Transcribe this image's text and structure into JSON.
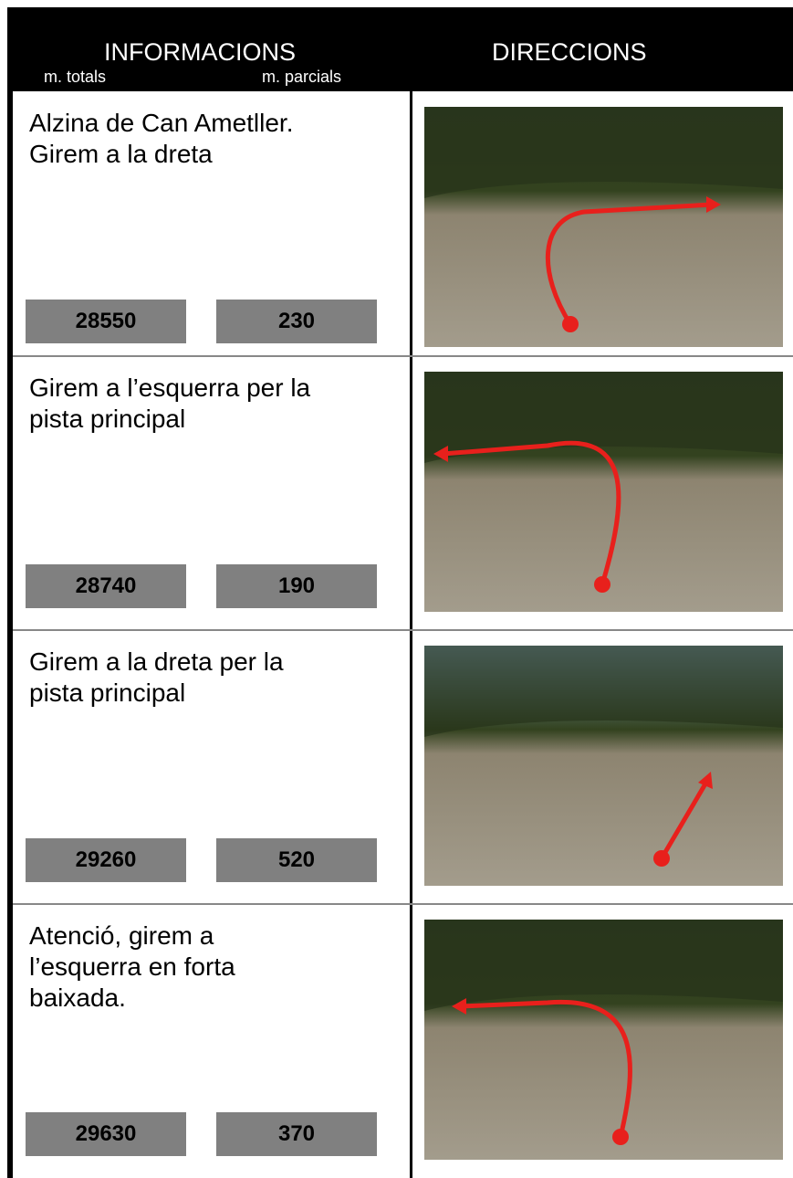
{
  "header": {
    "informacions": "INFORMACIONS",
    "totals_label": "m. totals",
    "partials_label": "m. parcials",
    "direccions": "DIRECCIONS"
  },
  "rows": [
    {
      "lines": [
        "Alzina de Can Ametller.",
        "Girem a la dreta"
      ],
      "total": "28550",
      "partial": "230"
    },
    {
      "lines": [
        "Girem  a l’esquerra per la",
        "pista principal"
      ],
      "total": "28740",
      "partial": "190"
    },
    {
      "lines": [
        "Girem a la dreta per la",
        "pista principal"
      ],
      "total": "29260",
      "partial": "520"
    },
    {
      "lines": [
        "Atenció, girem a",
        "l’esquerra en forta",
        "baixada."
      ],
      "total": "29630",
      "partial": "370"
    }
  ]
}
